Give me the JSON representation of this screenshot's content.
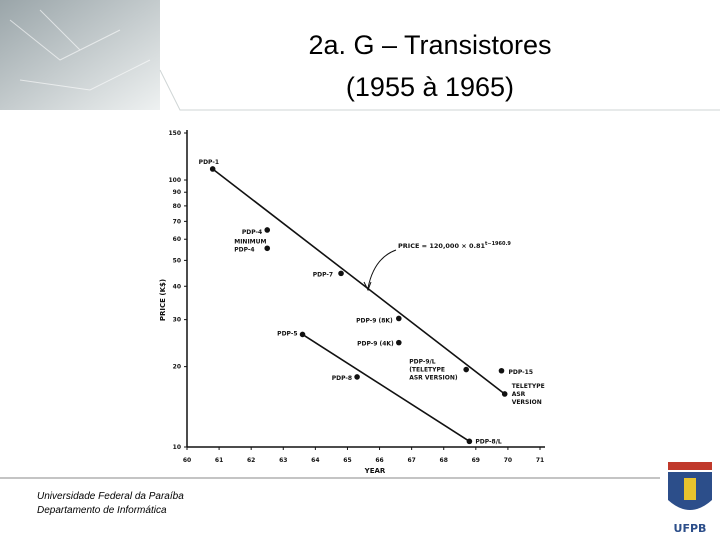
{
  "slide": {
    "title": [
      "2a. G – Transistores",
      "(1955 à 1965)"
    ],
    "footer": [
      "Universidade Federal da Paraíba",
      "Departamento de Informática"
    ],
    "logo_text": "UFPB"
  },
  "chart_data": {
    "type": "scatter",
    "x_label": "YEAR",
    "y_label": "PRICE (K$)",
    "xlim": [
      60,
      71
    ],
    "xticks": [
      60,
      61,
      62,
      63,
      64,
      65,
      66,
      67,
      68,
      69,
      70,
      71
    ],
    "ylim": [
      10,
      150
    ],
    "yticks": [
      10,
      20,
      30,
      40,
      50,
      60,
      70,
      80,
      90,
      100,
      150
    ],
    "y_log_scale": true,
    "color": "#111111",
    "points": [
      {
        "label": [
          "PDP-1"
        ],
        "x": 60.8,
        "y": 110
      },
      {
        "label": [
          "PDP-4"
        ],
        "x": 62.5,
        "y": 65
      },
      {
        "label": [
          "MINIMUM",
          "PDP-4"
        ],
        "x": 62.5,
        "y": 55.5
      },
      {
        "label": [
          "PDP-7"
        ],
        "x": 64.8,
        "y": 44.7
      },
      {
        "label": [
          "PDP-9 (8K)"
        ],
        "x": 66.6,
        "y": 30.3
      },
      {
        "label": [
          "PDP-9 (4K)"
        ],
        "x": 66.6,
        "y": 24.6
      },
      {
        "label": [
          "PDP-9/L",
          "(TELETYPE",
          "ASR VERSION)"
        ],
        "x": 68.7,
        "y": 19.5
      },
      {
        "label": [
          "PDP-15"
        ],
        "x": 69.8,
        "y": 19.3
      },
      {
        "label": [
          "TELETYPE",
          "ASR",
          "VERSION"
        ],
        "x": 69.9,
        "y": 15.8
      },
      {
        "label": [
          "PDP-5"
        ],
        "x": 63.6,
        "y": 26.4
      },
      {
        "label": [
          "PDP-8"
        ],
        "x": 65.3,
        "y": 18.3
      },
      {
        "label": [
          "PDP-8/L"
        ],
        "x": 68.8,
        "y": 10.5
      }
    ],
    "trend_lines": [
      {
        "x": [
          60.8,
          69.9
        ],
        "y": [
          110,
          15.8
        ]
      },
      {
        "x": [
          63.6,
          68.8
        ],
        "y": [
          26.4,
          10.5
        ]
      }
    ],
    "annotation": {
      "text": "PRICE = 120,000 × 0.81",
      "sup": "t−1960.9"
    }
  }
}
